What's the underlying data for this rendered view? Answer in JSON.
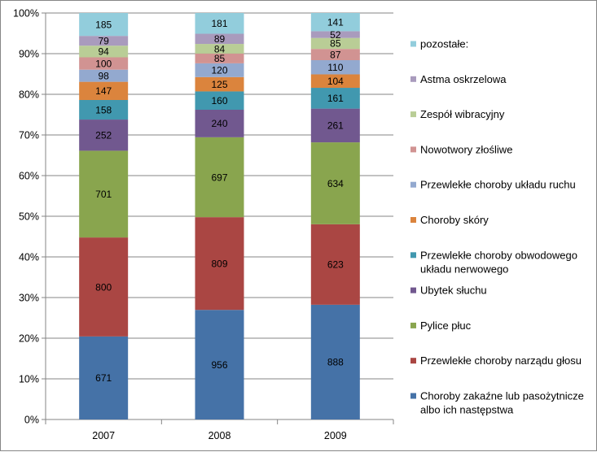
{
  "chart_data": {
    "type": "bar",
    "stacked": "percent",
    "categories": [
      "2007",
      "2008",
      "2009"
    ],
    "y_ticks": [
      "0%",
      "10%",
      "20%",
      "30%",
      "40%",
      "50%",
      "60%",
      "70%",
      "80%",
      "90%",
      "100%"
    ],
    "ylim": [
      0,
      100
    ],
    "legend_position": "right",
    "series": [
      {
        "name": "Choroby zakaźne lub pasożytnicze albo ich następstwa",
        "legend_lines": [
          "Choroby zakaźne lub pasożytnicze",
          "albo ich następstwa"
        ],
        "color": "#4572A7",
        "values": [
          671,
          956,
          888
        ]
      },
      {
        "name": "Przewlekłe choroby narządu głosu",
        "legend_lines": [
          "Przewlekłe choroby narządu głosu"
        ],
        "color": "#AA4643",
        "values": [
          800,
          809,
          623
        ]
      },
      {
        "name": "Pylice płuc",
        "legend_lines": [
          "Pylice płuc"
        ],
        "color": "#89A54E",
        "values": [
          701,
          697,
          634
        ]
      },
      {
        "name": "Ubytek słuchu",
        "legend_lines": [
          "Ubytek słuchu"
        ],
        "color": "#71588F",
        "values": [
          252,
          240,
          261
        ]
      },
      {
        "name": "Przewlekłe choroby obwodowego układu nerwowego",
        "legend_lines": [
          "Przewlekłe choroby obwodowego",
          "układu nerwowego"
        ],
        "color": "#4198AF",
        "values": [
          158,
          160,
          161
        ]
      },
      {
        "name": "Choroby skóry",
        "legend_lines": [
          "Choroby skóry"
        ],
        "color": "#DB843D",
        "values": [
          147,
          125,
          104
        ]
      },
      {
        "name": "Przewlekłe choroby układu ruchu",
        "legend_lines": [
          "Przewlekłe choroby układu ruchu"
        ],
        "color": "#93A9CF",
        "values": [
          98,
          120,
          110
        ]
      },
      {
        "name": "Nowotwory złośliwe",
        "legend_lines": [
          "Nowotwory złośliwe"
        ],
        "color": "#D19392",
        "values": [
          100,
          85,
          87
        ]
      },
      {
        "name": "Zespół wibracyjny",
        "legend_lines": [
          "Zespół wibracyjny"
        ],
        "color": "#B9CD96",
        "values": [
          94,
          84,
          85
        ]
      },
      {
        "name": "Astma oskrzelowa",
        "legend_lines": [
          "Astma oskrzelowa"
        ],
        "color": "#A99BBD",
        "values": [
          79,
          89,
          52
        ]
      },
      {
        "name": "pozostałe:",
        "legend_lines": [
          "pozostałe:"
        ],
        "color": "#92CDDC",
        "values": [
          185,
          181,
          141
        ]
      }
    ]
  }
}
